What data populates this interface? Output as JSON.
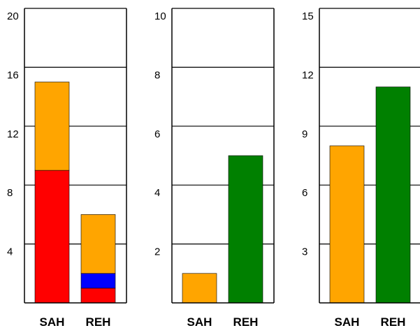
{
  "chart_data": [
    {
      "type": "bar",
      "stacked": true,
      "categories": [
        "SAH",
        "REH"
      ],
      "series": [
        {
          "color": "#ff0000",
          "values": [
            9.0,
            1.0
          ]
        },
        {
          "color": "#0000ff",
          "values": [
            0,
            1.0
          ]
        },
        {
          "color": "#ffa500",
          "values": [
            6.0,
            4.0
          ]
        }
      ],
      "ylim": [
        0,
        20
      ],
      "yticks": [
        4,
        8,
        12,
        16,
        20
      ],
      "grid": true
    },
    {
      "type": "bar",
      "categories": [
        "SAH",
        "REH"
      ],
      "series": [
        {
          "values": [
            1.0,
            5.0
          ],
          "colors": [
            "#ffa500",
            "#008000"
          ]
        }
      ],
      "ylim": [
        0,
        10
      ],
      "yticks": [
        2,
        4,
        6,
        8,
        10
      ],
      "grid": true
    },
    {
      "type": "bar",
      "categories": [
        "SAH",
        "REH"
      ],
      "series": [
        {
          "values": [
            8.0,
            11.0
          ],
          "colors": [
            "#ffa500",
            "#008000"
          ]
        }
      ],
      "ylim": [
        0,
        15
      ],
      "yticks": [
        3,
        6,
        9,
        12,
        15
      ],
      "grid": true
    }
  ]
}
